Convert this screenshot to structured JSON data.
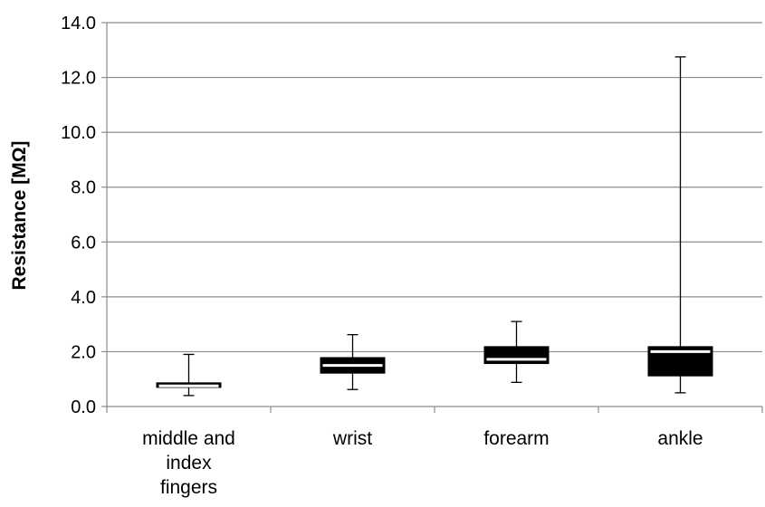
{
  "chart_data": {
    "type": "boxplot",
    "ylabel": "Resistance [MΩ]",
    "ylim": [
      0,
      14
    ],
    "yticks": [
      "0.0",
      "2.0",
      "4.0",
      "6.0",
      "8.0",
      "10.0",
      "12.0",
      "14.0"
    ],
    "grid": true,
    "categories": [
      {
        "label_lines": [
          "middle and",
          "index",
          "fingers"
        ],
        "min": 0.4,
        "q1": 0.68,
        "median": 0.75,
        "q3": 0.88,
        "max": 1.9
      },
      {
        "label_lines": [
          "wrist"
        ],
        "min": 0.62,
        "q1": 1.2,
        "median": 1.5,
        "q3": 1.8,
        "max": 2.62
      },
      {
        "label_lines": [
          "forearm"
        ],
        "min": 0.88,
        "q1": 1.55,
        "median": 1.72,
        "q3": 2.2,
        "max": 3.1
      },
      {
        "label_lines": [
          "ankle"
        ],
        "min": 0.5,
        "q1": 1.1,
        "median": 2.0,
        "q3": 2.2,
        "max": 12.75
      }
    ],
    "colors": {
      "box": "#000000",
      "median": "#ffffff",
      "grid": "#8c8c8c",
      "whisker": "#000000"
    }
  }
}
